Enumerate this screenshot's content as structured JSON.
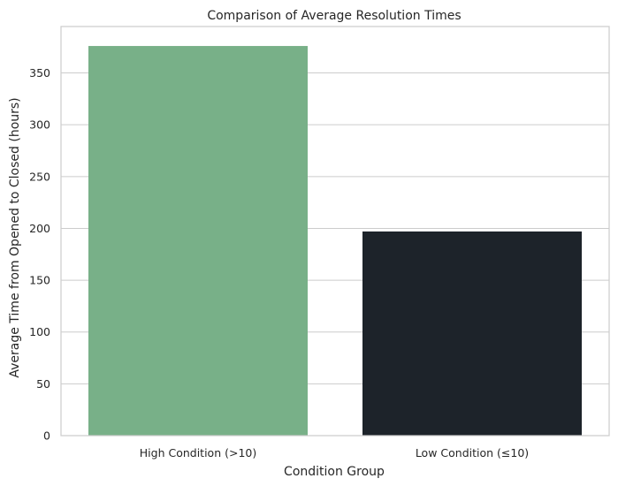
{
  "chart_data": {
    "type": "bar",
    "title": "Comparison of Average Resolution Times",
    "xlabel": "Condition Group",
    "ylabel": "Average Time from Opened to Closed (hours)",
    "categories": [
      "High Condition (>10)",
      "Low Condition (≤10)"
    ],
    "values": [
      376,
      197
    ],
    "colors": [
      "#78b088",
      "#1d232a"
    ],
    "ylim": [
      0,
      394.8
    ],
    "yticks": [
      0,
      50,
      100,
      150,
      200,
      250,
      300,
      350
    ],
    "grid": "horizontal",
    "style": {
      "background": "#ffffff",
      "grid_color": "#cccccc",
      "spine_color": "#cccccc",
      "text_color": "#262626"
    }
  }
}
